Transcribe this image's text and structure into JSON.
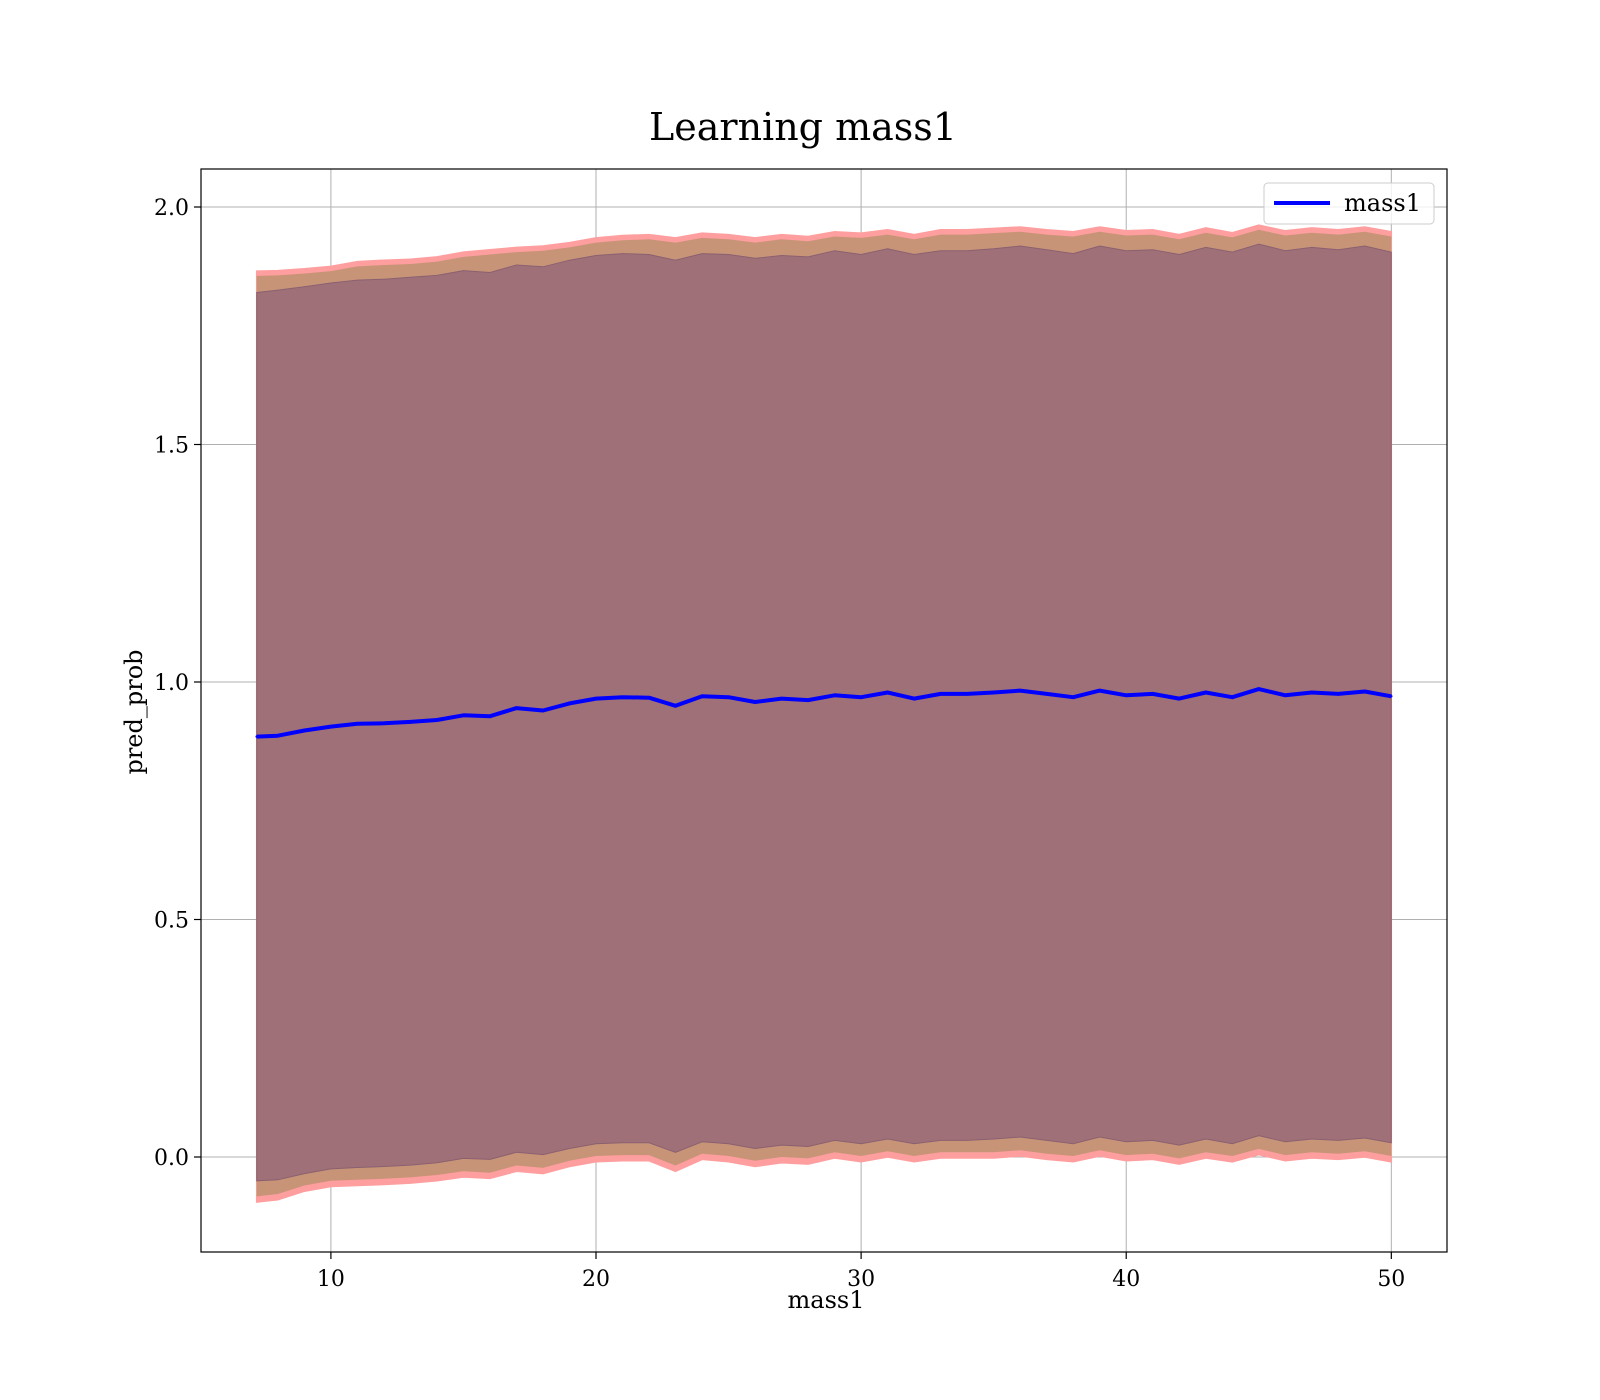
{
  "chart_data": {
    "type": "line",
    "title": "Learning mass1",
    "xlabel": "mass1",
    "ylabel": "pred_prob",
    "xlim": [
      5.1,
      52.1
    ],
    "ylim": [
      -0.2,
      2.08
    ],
    "xticks": [
      10,
      20,
      30,
      40,
      50
    ],
    "yticks": [
      0.0,
      0.5,
      1.0,
      1.5,
      2.0
    ],
    "xtick_labels": [
      "10",
      "20",
      "30",
      "40",
      "50"
    ],
    "ytick_labels": [
      "0.0",
      "0.5",
      "1.0",
      "1.5",
      "2.0"
    ],
    "grid": true,
    "legend": {
      "position": "top-right",
      "entries": [
        "mass1"
      ]
    },
    "colors": {
      "line": "#0000ff",
      "band_outer": "#ff9e9e",
      "band_mid": "#c89478",
      "band_inner": "#a07078"
    },
    "series": [
      {
        "name": "mass1",
        "x": [
          7.2,
          8,
          9,
          10,
          11,
          12,
          13,
          14,
          15,
          16,
          17,
          18,
          19,
          20,
          21,
          22,
          23,
          24,
          25,
          26,
          27,
          28,
          29,
          30,
          31,
          32,
          33,
          34,
          35,
          36,
          37,
          38,
          39,
          40,
          41,
          42,
          43,
          44,
          45,
          46,
          47,
          48,
          49,
          50
        ],
        "y": [
          0.885,
          0.887,
          0.898,
          0.906,
          0.912,
          0.913,
          0.916,
          0.92,
          0.93,
          0.928,
          0.945,
          0.94,
          0.955,
          0.965,
          0.968,
          0.967,
          0.95,
          0.97,
          0.968,
          0.958,
          0.965,
          0.962,
          0.972,
          0.968,
          0.978,
          0.965,
          0.975,
          0.975,
          0.978,
          0.982,
          0.975,
          0.968,
          0.982,
          0.972,
          0.975,
          0.965,
          0.978,
          0.968,
          0.985,
          0.972,
          0.978,
          0.975,
          0.98,
          0.97
        ]
      }
    ],
    "bands": [
      {
        "role": "outer",
        "lower": [
          -0.095,
          -0.09,
          -0.072,
          -0.062,
          -0.06,
          -0.058,
          -0.055,
          -0.05,
          -0.042,
          -0.045,
          -0.03,
          -0.035,
          -0.02,
          -0.01,
          -0.008,
          -0.008,
          -0.03,
          -0.005,
          -0.01,
          -0.02,
          -0.012,
          -0.015,
          -0.002,
          -0.01,
          0.0,
          -0.01,
          -0.002,
          -0.002,
          -0.002,
          0.002,
          -0.005,
          -0.01,
          0.002,
          -0.008,
          -0.005,
          -0.015,
          -0.002,
          -0.01,
          0.005,
          -0.008,
          -0.002,
          -0.005,
          0.0,
          -0.01
        ],
        "upper": [
          1.865,
          1.866,
          1.87,
          1.875,
          1.885,
          1.888,
          1.89,
          1.895,
          1.905,
          1.91,
          1.915,
          1.918,
          1.925,
          1.935,
          1.94,
          1.942,
          1.935,
          1.945,
          1.942,
          1.935,
          1.942,
          1.938,
          1.948,
          1.945,
          1.952,
          1.942,
          1.952,
          1.952,
          1.955,
          1.958,
          1.952,
          1.948,
          1.958,
          1.95,
          1.952,
          1.942,
          1.956,
          1.946,
          1.962,
          1.95,
          1.956,
          1.952,
          1.958,
          1.948
        ]
      },
      {
        "role": "inner",
        "lower": [
          -0.05,
          -0.048,
          -0.035,
          -0.025,
          -0.022,
          -0.02,
          -0.017,
          -0.012,
          -0.003,
          -0.005,
          0.01,
          0.005,
          0.018,
          0.028,
          0.03,
          0.03,
          0.01,
          0.032,
          0.028,
          0.018,
          0.025,
          0.022,
          0.035,
          0.028,
          0.038,
          0.028,
          0.035,
          0.035,
          0.038,
          0.042,
          0.035,
          0.028,
          0.042,
          0.032,
          0.035,
          0.025,
          0.038,
          0.028,
          0.045,
          0.032,
          0.038,
          0.035,
          0.04,
          0.03
        ],
        "upper": [
          1.82,
          1.825,
          1.832,
          1.84,
          1.846,
          1.848,
          1.852,
          1.856,
          1.866,
          1.862,
          1.878,
          1.874,
          1.888,
          1.898,
          1.902,
          1.9,
          1.888,
          1.902,
          1.9,
          1.892,
          1.898,
          1.895,
          1.908,
          1.9,
          1.912,
          1.9,
          1.908,
          1.908,
          1.912,
          1.918,
          1.91,
          1.902,
          1.918,
          1.908,
          1.91,
          1.9,
          1.915,
          1.905,
          1.922,
          1.908,
          1.915,
          1.91,
          1.918,
          1.905
        ]
      }
    ]
  }
}
